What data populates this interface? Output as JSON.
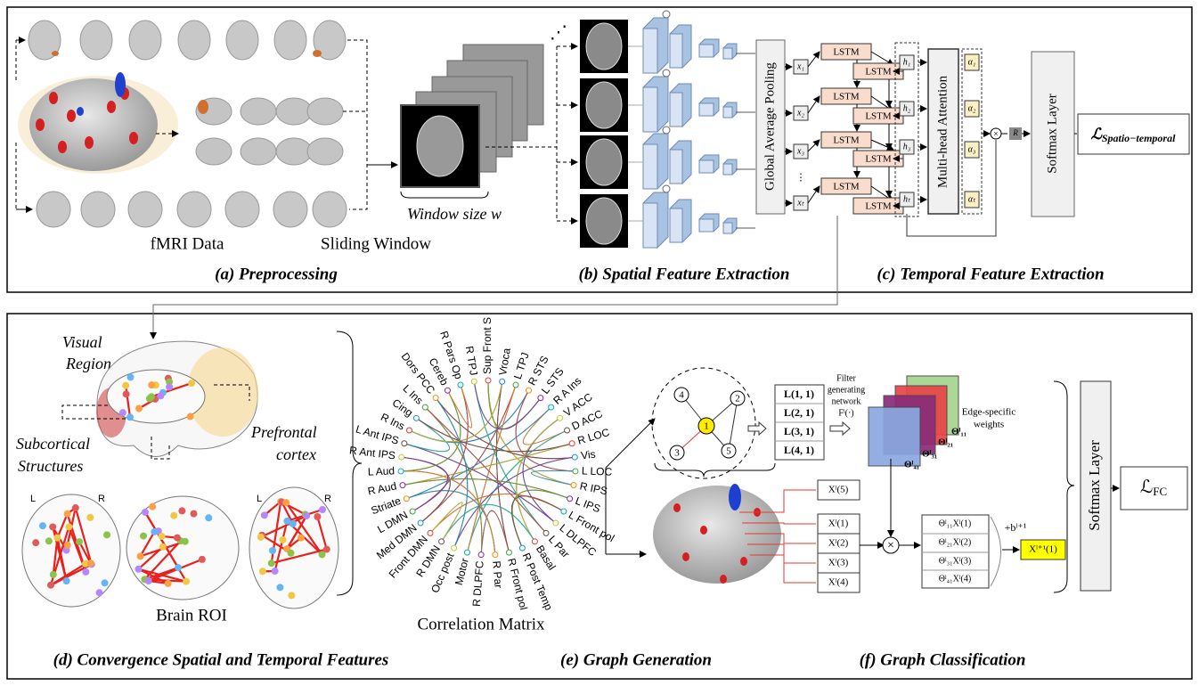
{
  "preprocessing": {
    "fmri_label": "fMRI Data",
    "sliding_label": "Sliding Window",
    "window_label": "Window size w",
    "caption": "(a) Preprocessing"
  },
  "spatial": {
    "pooling": "Global  Average Pooling",
    "caption": "(b) Spatial Feature Extraction"
  },
  "temporal": {
    "inputs": [
      "x₁",
      "x₂",
      "x₃",
      "xₜ"
    ],
    "lstm_cells": [
      "LSTM",
      "LSTM",
      "LSTM",
      "LSTM",
      "LSTM",
      "LSTM",
      "LSTM",
      "LSTM"
    ],
    "hidden": [
      "h₁",
      "h₂",
      "h₃",
      "hₜ"
    ],
    "attention": "Multi-head Attention",
    "weights": [
      "α₁",
      "α₂",
      "α₃",
      "αₜ"
    ],
    "readout": "R",
    "softmax": "Softmax Layer",
    "loss": {
      "symbol": "ℒ",
      "subscript": "Spatio−temporal"
    },
    "caption": "(c) Temporal Feature Extraction"
  },
  "convergence": {
    "regions": {
      "visual": [
        "Visual",
        "Region"
      ],
      "subcortical": [
        "Subcortical",
        "Structures"
      ],
      "prefrontal": [
        "Prefrontal",
        "cortex"
      ]
    },
    "hemispheres": {
      "left": "L",
      "right": "R"
    },
    "roi_caption": "Brain ROI",
    "matrix_caption": "Correlation Matrix",
    "roi_names": [
      "Sup Front S",
      "Vroca",
      "L TPJ",
      "R STS",
      "L STS",
      "R A Ins",
      "V ACC",
      "D ACC",
      "R LOC",
      "Vis",
      "L LOC",
      "R IPS",
      "L IPS",
      "L Front pol",
      "L DLPFC",
      "L Par",
      "Basal",
      "R Post Temp",
      "R Front pol",
      "R Par",
      "R DLPFC",
      "Motor",
      "Occ post",
      "R DMN",
      "Front DMN",
      "Med DMN",
      "L DMN",
      "Striate",
      "R Aud",
      "L Aud",
      "R Ant IPS",
      "L Ant IPS",
      "R Ins",
      "Cing",
      "L Ins",
      "Dors PCC",
      "Cereb",
      "R Pars Op",
      "R TPJ"
    ],
    "caption": "(d) Convergence  Spatial and Temporal Features"
  },
  "graph_generation": {
    "nodes": [
      "1",
      "2",
      "3",
      "4",
      "5"
    ],
    "node_features": [
      "L(1, 1)",
      "L(2, 1)",
      "L(3, 1)",
      "L(4, 1)"
    ],
    "filter_network": [
      "Filter",
      "generating",
      "network",
      "Fˡ(·)"
    ],
    "weights_label": [
      "Edge-specific",
      "weights"
    ],
    "thetas": [
      "Θˡ₁₁",
      "Θˡ₂₁",
      "Θˡ₃₁",
      "Θˡ₄₁"
    ],
    "caption": "(e) Graph Generation"
  },
  "graph_classification": {
    "inputs": [
      "Xˡ(5)",
      "Xˡ(1)",
      "Xˡ(2)",
      "Xˡ(3)",
      "Xˡ(4)"
    ],
    "products": [
      "Θˡ₁₁Xˡ(1)",
      "Θˡ₂₁Xˡ(2)",
      "Θˡ₃₁Xˡ(3)",
      "Θˡ₄₁Xˡ(4)"
    ],
    "bias": "+bˡ⁺¹",
    "output": "Xˡ⁺¹(1)",
    "softmax": "Softmax Layer",
    "loss": {
      "symbol": "ℒ",
      "subscript": "FC"
    },
    "caption": "(f) Graph Classification"
  }
}
